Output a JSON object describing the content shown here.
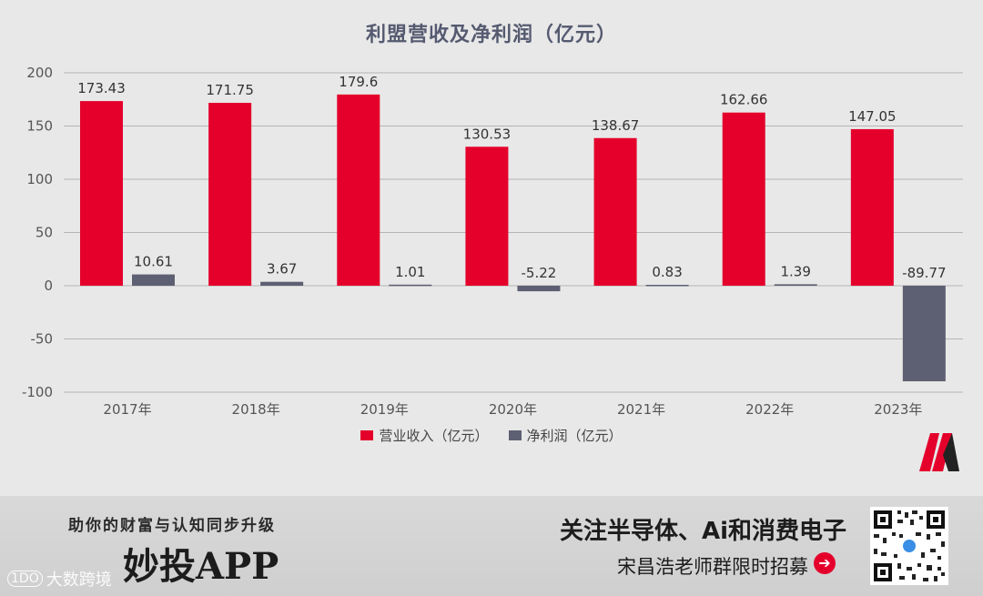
{
  "chart_data": {
    "type": "bar",
    "title": "利盟营收及净利润（亿元）",
    "categories": [
      "2017年",
      "2018年",
      "2019年",
      "2020年",
      "2021年",
      "2022年",
      "2023年"
    ],
    "series": [
      {
        "name": "营业收入（亿元）",
        "color": "#e4002b",
        "values": [
          173.43,
          171.75,
          179.6,
          130.53,
          138.67,
          162.66,
          147.05
        ],
        "labels": [
          "173.43",
          "171.75",
          "179.6",
          "130.53",
          "138.67",
          "162.66",
          "147.05"
        ]
      },
      {
        "name": "净利润（亿元）",
        "color": "#5d5f72",
        "values": [
          10.61,
          3.67,
          1.01,
          -5.22,
          0.83,
          1.39,
          -89.77
        ],
        "labels": [
          "10.61",
          "3.67",
          "1.01",
          "-5.22",
          "0.83",
          "1.39",
          "-89.77"
        ]
      }
    ],
    "ylim": [
      -100,
      200
    ],
    "yticks": [
      200,
      150,
      100,
      50,
      0,
      -50,
      -100
    ],
    "xlabel": "",
    "ylabel": "",
    "grid": true,
    "legend": "bottom"
  },
  "footer": {
    "slogan": "助你的财富与认知同步升级",
    "app_name": "妙投APP",
    "promo_line1": "关注半导体、Ai和消费电子",
    "promo_line2": "宋昌浩老师群限时招募",
    "arrow": "➔",
    "watermark_logo": "1DO",
    "watermark_text": "大数跨境"
  },
  "colors": {
    "accent": "#e4002b",
    "secondary": "#5d5f72",
    "title": "#555a70"
  }
}
